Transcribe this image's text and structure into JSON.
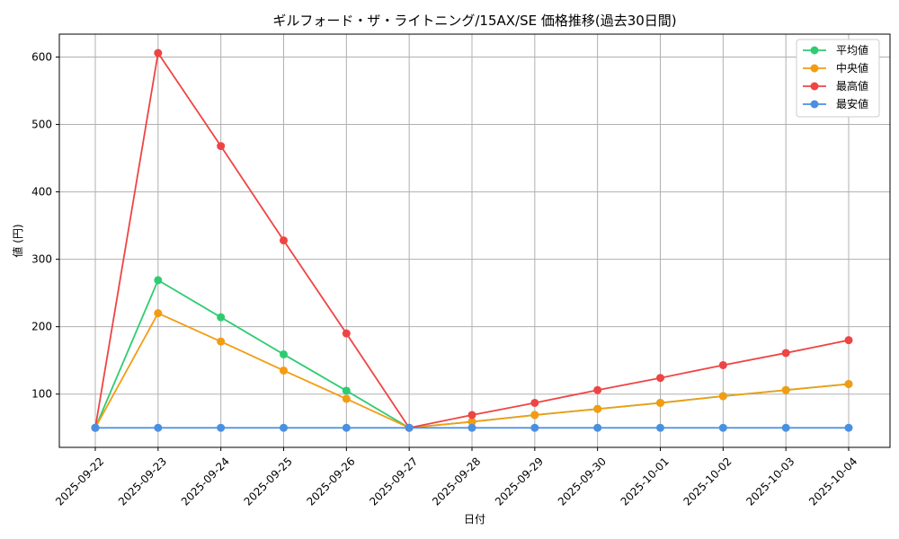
{
  "chart_data": {
    "type": "line",
    "title": "ギルフォード・ザ・ライトニング/15AX/SE 価格推移(過去30日間)",
    "xlabel": "日付",
    "ylabel": "値 (円)",
    "categories": [
      "2025-09-22",
      "2025-09-23",
      "2025-09-24",
      "2025-09-25",
      "2025-09-26",
      "2025-09-27",
      "2025-09-28",
      "2025-09-29",
      "2025-09-30",
      "2025-10-01",
      "2025-10-02",
      "2025-10-03",
      "2025-10-04"
    ],
    "ylim": [
      21,
      634
    ],
    "yticks": [
      100,
      200,
      300,
      400,
      500,
      600
    ],
    "grid": true,
    "legend_position": "top-right",
    "series": [
      {
        "name": "平均値",
        "color": "#2ecc71",
        "values": [
          50,
          269,
          214,
          159,
          105,
          50,
          59,
          69,
          78,
          87,
          97,
          106,
          115
        ]
      },
      {
        "name": "中央値",
        "color": "#f39c12",
        "values": [
          50,
          220,
          178,
          135,
          93,
          50,
          59,
          69,
          78,
          87,
          97,
          106,
          115
        ]
      },
      {
        "name": "最高値",
        "color": "#ef4444",
        "values": [
          50,
          606,
          468,
          328,
          190,
          50,
          69,
          87,
          106,
          124,
          143,
          161,
          180
        ]
      },
      {
        "name": "最安値",
        "color": "#4a90e2",
        "values": [
          50,
          50,
          50,
          50,
          50,
          50,
          50,
          50,
          50,
          50,
          50,
          50,
          50
        ]
      }
    ]
  }
}
